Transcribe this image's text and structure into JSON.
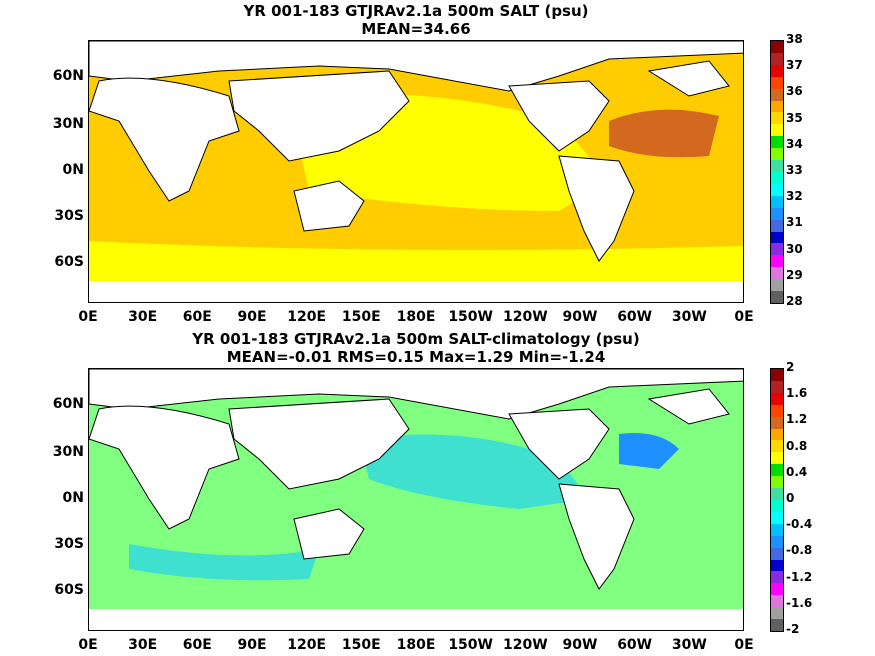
{
  "panel_top": {
    "title_line1": "YR 001-183 GTJRAv2.1a 500m SALT (psu)",
    "title_line2": "MEAN=34.66",
    "colorbar_labels": [
      "38",
      "37",
      "36",
      "35",
      "34",
      "33",
      "32",
      "31",
      "30",
      "29",
      "28"
    ],
    "colorbar_colors": [
      "#8b0000",
      "#b22222",
      "#e60000",
      "#ff4500",
      "#d2691e",
      "#ffa500",
      "#ffd700",
      "#ffff00",
      "#00dd00",
      "#7fff00",
      "#40e0a0",
      "#00ffd0",
      "#00ffff",
      "#00bfff",
      "#1e90ff",
      "#4169e1",
      "#0000cd",
      "#8a2be2",
      "#ff00ff",
      "#dd77dd",
      "#a0a0a0",
      "#606060"
    ]
  },
  "panel_bottom": {
    "title_line1": "YR 001-183 GTJRAv2.1a 500m SALT-climatology (psu)",
    "title_line2": "MEAN=-0.01   RMS=0.15   Max=1.29   Min=-1.24",
    "colorbar_labels": [
      "2",
      "1.6",
      "1.2",
      "0.8",
      "0.4",
      "0",
      "-0.4",
      "-0.8",
      "-1.2",
      "-1.6",
      "-2"
    ],
    "colorbar_colors": [
      "#8b0000",
      "#b22222",
      "#e60000",
      "#ff4500",
      "#d2691e",
      "#ffa500",
      "#ffd700",
      "#ffff00",
      "#00dd00",
      "#7fff00",
      "#40e0a0",
      "#00ffd0",
      "#00ffff",
      "#00bfff",
      "#1e90ff",
      "#4169e1",
      "#0000cd",
      "#8a2be2",
      "#ff00ff",
      "#dd77dd",
      "#a0a0a0",
      "#606060"
    ]
  },
  "axes": {
    "lat_labels": [
      "60N",
      "30N",
      "0N",
      "30S",
      "60S"
    ],
    "lon_labels": [
      "0E",
      "30E",
      "60E",
      "90E",
      "120E",
      "150E",
      "180E",
      "150W",
      "120W",
      "90W",
      "60W",
      "30W",
      "0E"
    ]
  },
  "colors": {
    "ocean_top": "#ffcc00",
    "ocean_top_light": "#ffff00",
    "ocean_top_high": "#d2691e",
    "ocean_bottom": "#80ff80",
    "ocean_bottom_cyan": "#40e0d0",
    "land": "#ffffff",
    "coast": "#000000"
  }
}
